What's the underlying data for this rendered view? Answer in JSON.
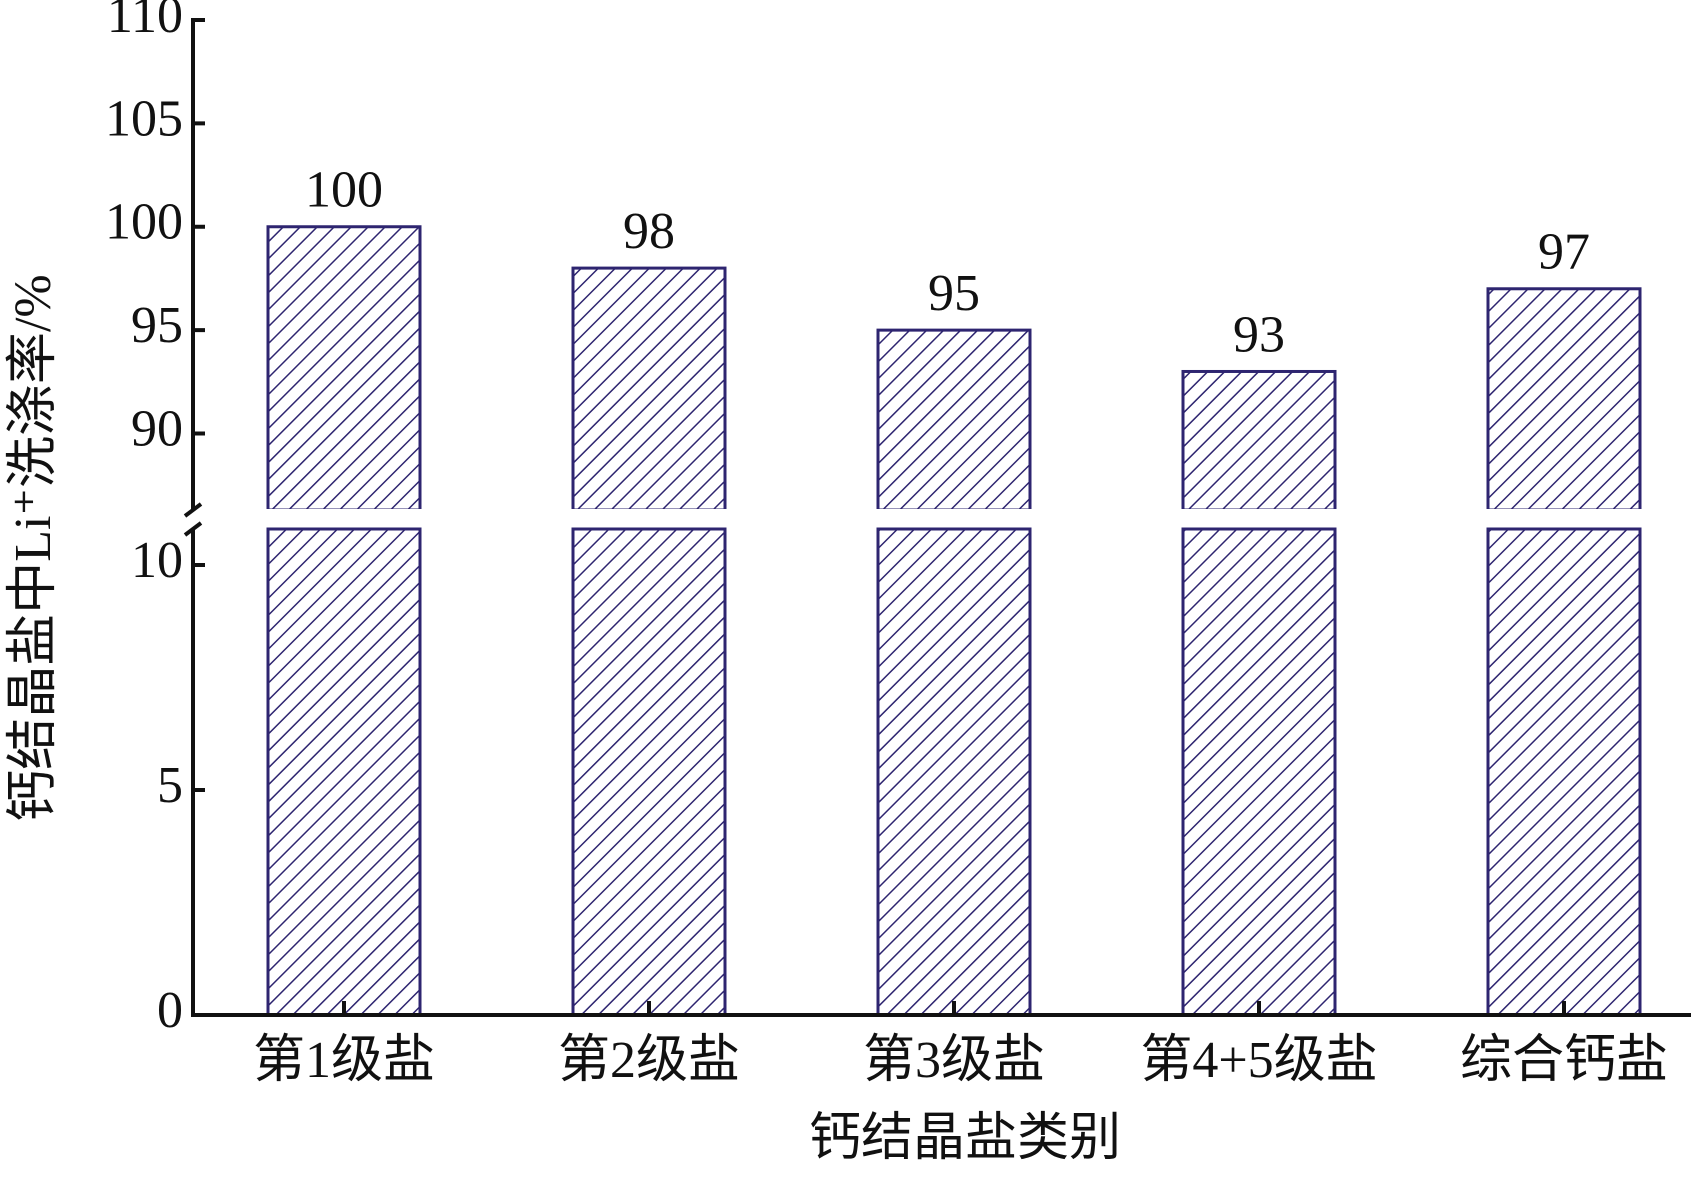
{
  "chart_data": {
    "type": "bar",
    "x_label": "钙结晶盐类别",
    "y_label": "钙结晶盐中Li⁺洗涤率/%",
    "categories": [
      "第1级盐",
      "第2级盐",
      "第3级盐",
      "第4+5级盐",
      "综合钙盐"
    ],
    "values": [
      100,
      98,
      95,
      93,
      97
    ],
    "color": "#2e2570",
    "ylim_lower": [
      0,
      10.8
    ],
    "yticks_lower": [
      0,
      5,
      10
    ],
    "ylim_upper": [
      86.3,
      110
    ],
    "yticks_upper": [
      90,
      95,
      100,
      105,
      110
    ]
  }
}
